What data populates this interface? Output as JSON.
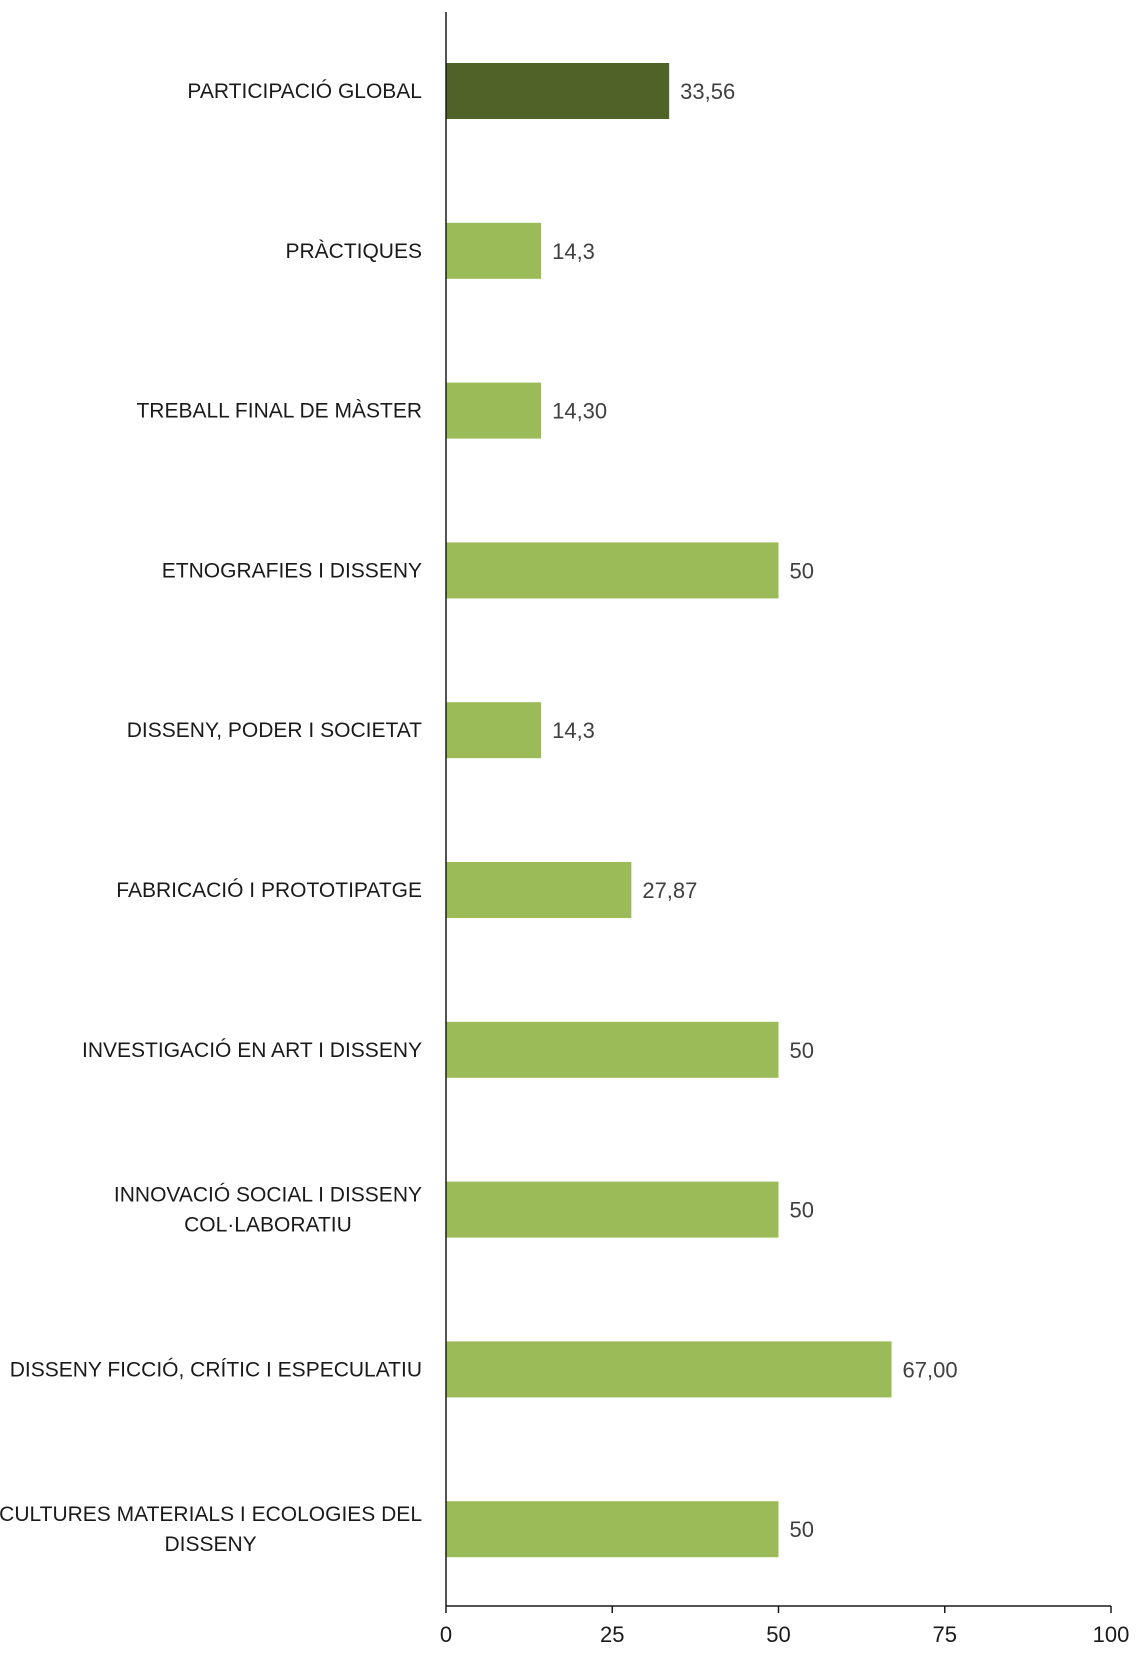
{
  "chart_data": {
    "type": "bar",
    "orientation": "horizontal",
    "categories": [
      [
        "PARTICIPACIÓ GLOBAL"
      ],
      [
        "PRÀCTIQUES"
      ],
      [
        "TREBALL FINAL DE MÀSTER"
      ],
      [
        "ETNOGRAFIES I DISSENY"
      ],
      [
        "DISSENY, PODER I SOCIETAT"
      ],
      [
        "FABRICACIÓ I PROTOTIPATGE"
      ],
      [
        "INVESTIGACIÓ EN ART I DISSENY"
      ],
      [
        "INNOVACIÓ SOCIAL I DISSENY",
        "COL·LABORATIU"
      ],
      [
        "DISSENY FICCIÓ, CRÍTIC I ESPECULATIU"
      ],
      [
        "CULTURES MATERIALS I ECOLOGIES DEL",
        "DISSENY"
      ]
    ],
    "values": [
      33.56,
      14.3,
      14.3,
      50,
      14.3,
      27.87,
      50,
      50,
      67,
      50
    ],
    "value_labels": [
      "33,56",
      "14,3",
      "14,30",
      "50",
      "14,3",
      "27,87",
      "50",
      "50",
      "67,00",
      "50"
    ],
    "bar_colors": [
      "#4f6228",
      "#9bbb59",
      "#9bbb59",
      "#9bbb59",
      "#9bbb59",
      "#9bbb59",
      "#9bbb59",
      "#9bbb59",
      "#9bbb59",
      "#9bbb59"
    ],
    "xlim": [
      0,
      100
    ],
    "xticks": [
      0,
      25,
      50,
      75,
      100
    ],
    "xtick_labels": [
      "0",
      "25",
      "50",
      "75",
      "100"
    ],
    "grid": false,
    "legend": "none"
  }
}
